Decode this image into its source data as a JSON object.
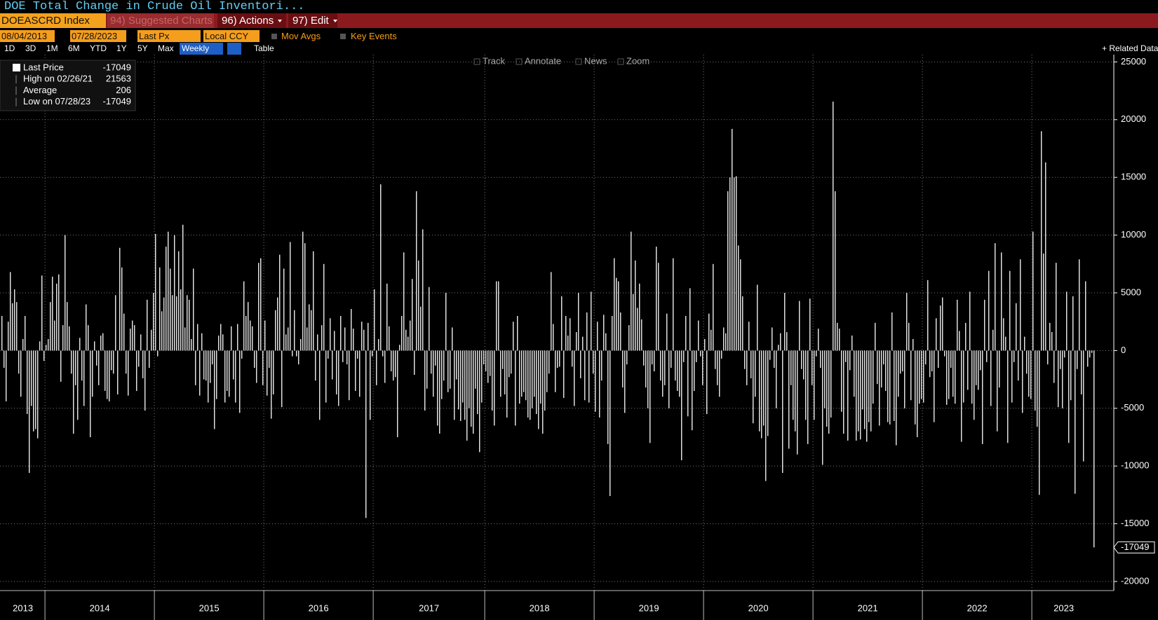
{
  "header": {
    "title": "DOE Total Change in Crude Oil Inventori...",
    "ticker": "DOEASCRD Index",
    "suggested": "94) Suggested Charts",
    "actions": "96) Actions",
    "edit": "97) Edit"
  },
  "toolbar": {
    "start_date": "08/04/2013",
    "end_date": "07/28/2023",
    "field": "Last Px",
    "currency": "Local CCY",
    "mov_avgs": "Mov Avgs",
    "key_events": "Key Events",
    "ranges": [
      "1D",
      "3D",
      "1M",
      "6M",
      "YTD",
      "1Y",
      "5Y",
      "Max"
    ],
    "period": "Weekly",
    "table": "Table",
    "related": "Related Data",
    "tools": [
      "Track",
      "Annotate",
      "News",
      "Zoom"
    ]
  },
  "chart_data": {
    "type": "bar",
    "color": "#ffffff",
    "grid": true,
    "stats": [
      {
        "label": "Last Price",
        "value": -17049
      },
      {
        "label": "High on 02/26/21",
        "value": 21563
      },
      {
        "label": "Average",
        "value": 206
      },
      {
        "label": "Low on 07/28/23",
        "value": -17049
      }
    ],
    "ylim": [
      -20000,
      25000
    ],
    "yticks": [
      25000,
      20000,
      15000,
      10000,
      5000,
      0,
      -5000,
      -10000,
      -15000,
      -20000
    ],
    "xticks": [
      {
        "value": 0,
        "label": "2013"
      },
      {
        "value": 21,
        "label": "2014"
      },
      {
        "value": 73,
        "label": "2015"
      },
      {
        "value": 125,
        "label": "2016"
      },
      {
        "value": 177,
        "label": "2017"
      },
      {
        "value": 230,
        "label": "2018"
      },
      {
        "value": 282,
        "label": "2019"
      },
      {
        "value": 334,
        "label": "2020"
      },
      {
        "value": 386,
        "label": "2021"
      },
      {
        "value": 438,
        "label": "2022"
      },
      {
        "value": 490,
        "label": "2023"
      }
    ],
    "values": [
      3000,
      -1500,
      -4400,
      2500,
      6800,
      4100,
      5300,
      4200,
      -2000,
      -4000,
      1000,
      3000,
      -5500,
      -10600,
      -4800,
      -7000,
      -6800,
      -7600,
      800,
      6500,
      -900,
      500,
      1000,
      4200,
      6400,
      2600,
      5800,
      6600,
      -2700,
      2200,
      10000,
      4200,
      2100,
      -2000,
      -7200,
      -3000,
      -6000,
      1100,
      -2600,
      -4800,
      4000,
      2200,
      -7500,
      -4000,
      800,
      -1300,
      -3000,
      1300,
      1500,
      -3500,
      -4200,
      -4400,
      -1700,
      -2000,
      4800,
      -3800,
      8900,
      7200,
      3200,
      -2000,
      -3900,
      1900,
      2600,
      2200,
      -3500,
      -1400,
      1400,
      -2400,
      -5200,
      4400,
      -1500,
      1800,
      5000,
      10100,
      -500,
      7200,
      3400,
      4600,
      9000,
      10300,
      7100,
      4800,
      10000,
      4700,
      8600,
      5300,
      10900,
      2000,
      4800,
      4400,
      1000,
      7100,
      -3000,
      2300,
      -3900,
      1500,
      -2500,
      -2600,
      -4500,
      -2800,
      -1200,
      -6800,
      -4200,
      1300,
      2300,
      1400,
      -4500,
      -3500,
      -4000,
      2100,
      -2500,
      -4500,
      2300,
      -5400,
      -700,
      6000,
      3000,
      4200,
      2600,
      2100,
      -1500,
      -2800,
      7600,
      8000,
      -3000,
      2600,
      -3900,
      -1500,
      -5900,
      -3800,
      3500,
      4600,
      8300,
      -4900,
      7100,
      1400,
      2000,
      9400,
      -500,
      3500,
      -500,
      -1200,
      1000,
      10300,
      9300,
      2000,
      4000,
      3500,
      8600,
      -2600,
      1400,
      -6000,
      2200,
      7500,
      -4500,
      -700,
      2800,
      -2500,
      1700,
      -3800,
      -4800,
      3000,
      -1000,
      2000,
      -1200,
      -4300,
      3600,
      1900,
      -3500,
      -700,
      -4000,
      2500,
      1800,
      -14500,
      2400,
      -6000,
      -500,
      5300,
      -3000,
      1000,
      14400,
      -500,
      -2800,
      5800,
      2100,
      -1800,
      -2600,
      -2300,
      -7500,
      500,
      3000,
      8500,
      1800,
      1200,
      2600,
      6200,
      -2100,
      13800,
      7800,
      3800,
      10500,
      -5200,
      -3300,
      5500,
      -2000,
      -4000,
      -1300,
      -6500,
      -7200,
      -4200,
      -2600,
      5000,
      -3600,
      -3300,
      2000,
      -6000,
      -2500,
      -5100,
      -6100,
      -4500,
      -6000,
      -7800,
      -5000,
      -6600,
      -7200,
      -3300,
      -5500,
      -8800,
      -4500,
      -1200,
      -1800,
      -2800,
      -2200,
      -5200,
      -6500,
      6000,
      6000,
      -4000,
      -1600,
      -3800,
      -5800,
      -2300,
      -2000,
      2500,
      -6500,
      3000,
      -4600,
      -4000,
      -3600,
      -4300,
      -5800,
      -6000,
      -5000,
      -4000,
      -5500,
      -6800,
      -4600,
      -7200,
      -5200,
      -3600,
      -2000,
      6800,
      2300,
      -3600,
      -1500,
      -1400,
      4700,
      -4100,
      3000,
      1300,
      2800,
      -1400,
      -4800,
      1600,
      5000,
      -2400,
      1200,
      -4300,
      3300,
      -4500,
      5100,
      -2000,
      -5300,
      2500,
      -5800,
      -2600,
      3100,
      1500,
      -8100,
      -12600,
      3000,
      8000,
      6300,
      6000,
      3300,
      -3200,
      -5400,
      -1200,
      2200,
      10300,
      4900,
      7800,
      3700,
      5800,
      2700,
      -1300,
      -3200,
      -5000,
      -8000,
      -1200,
      -1800,
      9000,
      7600,
      -2600,
      -4000,
      -3000,
      3200,
      -5000,
      -1500,
      8000,
      -2600,
      -3500,
      -4000,
      -9500,
      -1000,
      3000,
      -5700,
      5400,
      -6900,
      -3500,
      -1000,
      2600,
      -500,
      -3000,
      1000,
      -5500,
      3200,
      1800,
      7500,
      -1600,
      -3000,
      -4000,
      -700,
      2000,
      1500,
      13800,
      15000,
      19200,
      15000,
      15100,
      9100,
      7900,
      4700,
      -1600,
      -3000,
      2500,
      -2400,
      -6300,
      -4000,
      5700,
      -7000,
      -7600,
      -6500,
      -11300,
      -7400,
      -800,
      2000,
      -1500,
      -5000,
      500,
      1500,
      -10600,
      5000,
      1600,
      -8500,
      -3000,
      -6000,
      -7000,
      -9000,
      4300,
      -1600,
      -2500,
      -6000,
      -8100,
      4500,
      -3000,
      -6000,
      -500,
      1900,
      -1500,
      -9900,
      -5000,
      -6600,
      -7200,
      -5800,
      21563,
      13800,
      2400,
      1900,
      -5300,
      -7200,
      -1000,
      -7800,
      -1700,
      1300,
      -4000,
      -7800,
      -7000,
      -7700,
      -5100,
      -6800,
      -7900,
      -6200,
      -7000,
      -4600,
      2400,
      -2900,
      -6500,
      -3200,
      -1200,
      -3500,
      -6200,
      -6400,
      3300,
      -6100,
      -8200,
      -4000,
      -2000,
      -1800,
      -5000,
      5000,
      2400,
      -4300,
      1000,
      -6400,
      -7500,
      -4600,
      -4200,
      -4500,
      -1200,
      6100,
      -2300,
      -1800,
      -6200,
      2800,
      -1500,
      3900,
      4600,
      -500,
      -4700,
      -4200,
      -1500,
      -4000,
      -4600,
      4400,
      1700,
      -7900,
      -4500,
      2400,
      -3400,
      5100,
      -4600,
      -6000,
      -3000,
      -3400,
      -1700,
      -8100,
      4400,
      -1000,
      6900,
      -4800,
      1800,
      9300,
      -7000,
      -3200,
      8500,
      2800,
      1200,
      -8000,
      6900,
      -4500,
      -1000,
      4100,
      -2600,
      7900,
      -5400,
      1200,
      -2000,
      -4000,
      -4200,
      10300,
      -5200,
      -6600,
      -12500,
      19000,
      8400,
      16300,
      -1200,
      2400,
      1600,
      -2800,
      7600,
      -4900,
      -1600,
      -5000,
      -600,
      5100,
      -8000,
      -4300,
      4700,
      -12400,
      -1600,
      7900,
      -3800,
      -9600,
      6000,
      -1400,
      -600,
      -200,
      -17049
    ]
  }
}
